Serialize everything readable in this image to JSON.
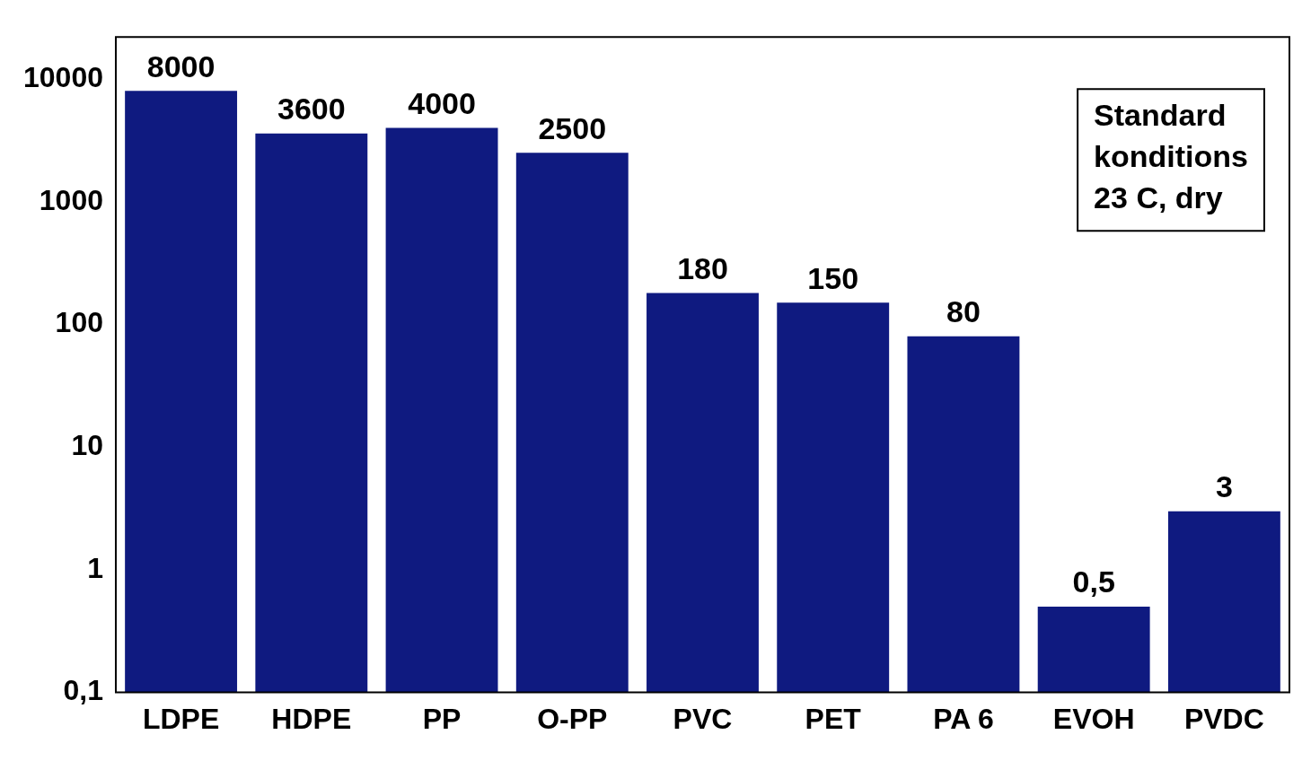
{
  "chart_data": {
    "type": "bar",
    "categories": [
      "LDPE",
      "HDPE",
      "PP",
      "O-PP",
      "PVC",
      "PET",
      "PA 6",
      "EVOH",
      "PVDC"
    ],
    "values": [
      8000,
      3600,
      4000,
      2500,
      180,
      150,
      80,
      0.5,
      3
    ],
    "value_labels": [
      "8000",
      "3600",
      "4000",
      "2500",
      "180",
      "150",
      "80",
      "0,5",
      "3"
    ],
    "color": "#0f1a80",
    "log": "y",
    "ylim": [
      0.1,
      22000
    ],
    "yticks": [
      {
        "value": 0.1,
        "label": "0,1"
      },
      1,
      10,
      100,
      1000,
      10000
    ],
    "grid": false,
    "legend": false,
    "annotations": [
      "Standard\nkonditions\n23 C, dry"
    ]
  }
}
